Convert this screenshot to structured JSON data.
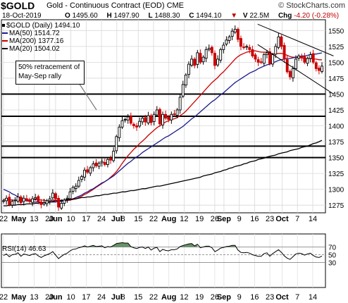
{
  "header": {
    "symbol": "$GOLD",
    "name": "Gold - Continuous Contract (EOD)",
    "exchange": "CME",
    "brand": "© StockCharts.com",
    "date": "18-Oct-2019",
    "open_label": "O",
    "open": "1495.60",
    "high_label": "H",
    "high": "1497.90",
    "low_label": "L",
    "low": "1488.30",
    "close_label": "C",
    "close": "1494.10",
    "volume_label": "V",
    "volume": "22.5M",
    "change_label": "Chg",
    "change": "-4.20 (-0.28%)",
    "change_icon": "down-triangle-icon"
  },
  "legend": {
    "price": "$GOLD (Daily) 1494.10",
    "ma50": "MA(50) 1514.72",
    "ma200": "MA(200) 1377.16",
    "ma20": "MA(20) 1504.02"
  },
  "annotation": {
    "line1": "50% retracement of",
    "line2": "May-Sep rally"
  },
  "rsi": {
    "label": "RSI(14) 46.63",
    "ticks": [
      "70",
      "50",
      "30"
    ],
    "levels": [
      70,
      50,
      30
    ]
  },
  "colors": {
    "up_candle": "#000000",
    "down_candle": "#cc0000",
    "ma50": "#1c1c8c",
    "ma200": "#cc0000",
    "ma20": "#000000",
    "rsi_fill": "#4f7f4f",
    "channel": "#000000"
  },
  "chart_data": {
    "type": "line",
    "title": "$GOLD (Daily) 1494.10",
    "y_ticks": [
      1275,
      1300,
      1325,
      1350,
      1375,
      1400,
      1425,
      1450,
      1475,
      1500,
      1525,
      1550
    ],
    "ylim": [
      1263,
      1567
    ],
    "x_labels": [
      "22",
      "May",
      "13",
      "20",
      "Jun",
      "10",
      "17",
      "24",
      "Jul",
      "8",
      "15",
      "22",
      "Aug",
      "12",
      "19",
      "26",
      "Sep",
      "9",
      "16",
      "23",
      "Oct",
      "7",
      "14"
    ],
    "month_labels": [
      "May",
      "Jun",
      "Jul",
      "Aug",
      "Sep",
      "Oct"
    ],
    "horizontal_levels": [
      1450,
      1415,
      1368,
      1350
    ],
    "series": [
      {
        "name": "$GOLD (Daily) 1494.10",
        "values": [
          1282,
          1286,
          1276,
          1281,
          1283,
          1288,
          1279,
          1286,
          1283,
          1281,
          1285,
          1287,
          1281,
          1276,
          1279,
          1282,
          1285,
          1294,
          1285,
          1272,
          1278,
          1283,
          1286,
          1296,
          1303,
          1305,
          1314,
          1320,
          1330,
          1327,
          1334,
          1340,
          1337,
          1341,
          1344,
          1339,
          1347,
          1346,
          1360,
          1383,
          1398,
          1408,
          1410,
          1414,
          1404,
          1400,
          1398,
          1407,
          1412,
          1406,
          1416,
          1405,
          1418,
          1425,
          1403,
          1418,
          1412,
          1410,
          1418,
          1418,
          1425,
          1445,
          1465,
          1480,
          1497,
          1505,
          1495,
          1515,
          1500,
          1508,
          1520,
          1522,
          1515,
          1495,
          1505,
          1520,
          1527,
          1535,
          1540,
          1549,
          1552,
          1536,
          1525,
          1523,
          1525,
          1520,
          1510,
          1505,
          1500,
          1500,
          1512,
          1515,
          1498,
          1512,
          1525,
          1540,
          1525,
          1505,
          1485,
          1477,
          1490,
          1505,
          1510,
          1508,
          1500,
          1506,
          1512,
          1500,
          1490,
          1487,
          1494
        ]
      },
      {
        "name": "MA(50) 1514.72",
        "values": [
          1300,
          1298,
          1296,
          1293,
          1291,
          1288,
          1286,
          1284,
          1282,
          1281,
          1280,
          1280,
          1280,
          1279,
          1279,
          1279,
          1280,
          1280,
          1280,
          1281,
          1281,
          1282,
          1283,
          1284,
          1285,
          1287,
          1289,
          1291,
          1294,
          1296,
          1299,
          1301,
          1304,
          1307,
          1310,
          1312,
          1315,
          1318,
          1321,
          1325,
          1329,
          1333,
          1337,
          1341,
          1344,
          1348,
          1351,
          1354,
          1358,
          1361,
          1364,
          1367,
          1370,
          1373,
          1376,
          1379,
          1382,
          1384,
          1387,
          1390,
          1393,
          1396,
          1399,
          1403,
          1407,
          1411,
          1414,
          1418,
          1422,
          1426,
          1430,
          1434,
          1438,
          1441,
          1445,
          1449,
          1452,
          1456,
          1460,
          1464,
          1468,
          1471,
          1474,
          1477,
          1480,
          1483,
          1485,
          1487,
          1490,
          1492,
          1494,
          1496,
          1497,
          1499,
          1501,
          1503,
          1504,
          1505,
          1506,
          1506,
          1507,
          1508,
          1509,
          1510,
          1510,
          1511,
          1512,
          1513,
          1513,
          1514,
          1514.72
        ]
      },
      {
        "name": "MA(200) 1377.16",
        "values": [
          1274,
          1274,
          1275,
          1275,
          1275,
          1276,
          1276,
          1276,
          1277,
          1277,
          1277,
          1278,
          1278,
          1279,
          1279,
          1280,
          1280,
          1281,
          1282,
          1282,
          1283,
          1283,
          1284,
          1284,
          1285,
          1285,
          1286,
          1287,
          1287,
          1288,
          1288,
          1289,
          1290,
          1290,
          1291,
          1292,
          1292,
          1293,
          1294,
          1294,
          1295,
          1296,
          1296,
          1297,
          1298,
          1298,
          1299,
          1300,
          1301,
          1301,
          1302,
          1303,
          1304,
          1305,
          1305,
          1306,
          1307,
          1308,
          1309,
          1310,
          1311,
          1312,
          1313,
          1314,
          1315,
          1316,
          1317,
          1318,
          1319,
          1321,
          1322,
          1323,
          1324,
          1326,
          1327,
          1328,
          1330,
          1331,
          1333,
          1334,
          1336,
          1337,
          1338,
          1340,
          1341,
          1343,
          1344,
          1345,
          1347,
          1348,
          1349,
          1351,
          1352,
          1353,
          1354,
          1356,
          1357,
          1358,
          1359,
          1361,
          1362,
          1363,
          1364,
          1366,
          1367,
          1368,
          1370,
          1372,
          1373,
          1375,
          1377.16
        ]
      },
      {
        "name": "MA(20) 1504.02",
        "values": [
          1284,
          1284,
          1284,
          1283,
          1283,
          1283,
          1283,
          1283,
          1283,
          1283,
          1283,
          1284,
          1284,
          1283,
          1283,
          1282,
          1282,
          1283,
          1283,
          1282,
          1282,
          1282,
          1282,
          1283,
          1284,
          1285,
          1287,
          1289,
          1292,
          1294,
          1297,
          1300,
          1303,
          1306,
          1309,
          1312,
          1315,
          1319,
          1323,
          1328,
          1334,
          1341,
          1347,
          1353,
          1358,
          1363,
          1367,
          1372,
          1376,
          1380,
          1385,
          1389,
          1393,
          1397,
          1400,
          1403,
          1406,
          1408,
          1410,
          1411,
          1413,
          1416,
          1419,
          1423,
          1428,
          1433,
          1438,
          1443,
          1448,
          1453,
          1458,
          1463,
          1468,
          1472,
          1476,
          1481,
          1485,
          1490,
          1495,
          1500,
          1505,
          1509,
          1512,
          1514,
          1516,
          1517,
          1518,
          1518,
          1517,
          1516,
          1516,
          1516,
          1514,
          1513,
          1513,
          1514,
          1514,
          1513,
          1511,
          1509,
          1508,
          1508,
          1507,
          1507,
          1506,
          1506,
          1506,
          1505,
          1505,
          1504,
          1504.02
        ]
      }
    ],
    "rsi_values": [
      48,
      52,
      45,
      50,
      51,
      55,
      46,
      52,
      50,
      48,
      51,
      53,
      47,
      43,
      47,
      50,
      53,
      58,
      49,
      40,
      46,
      51,
      54,
      60,
      64,
      65,
      68,
      70,
      73,
      70,
      72,
      74,
      71,
      72,
      73,
      68,
      71,
      70,
      74,
      79,
      80,
      81,
      80,
      80,
      71,
      68,
      66,
      69,
      70,
      66,
      70,
      62,
      67,
      69,
      58,
      64,
      61,
      60,
      63,
      63,
      65,
      71,
      74,
      76,
      78,
      79,
      73,
      77,
      68,
      70,
      72,
      72,
      68,
      58,
      62,
      67,
      69,
      71,
      72,
      74,
      74,
      62,
      56,
      55,
      56,
      54,
      50,
      48,
      46,
      46,
      53,
      55,
      46,
      53,
      58,
      63,
      56,
      47,
      41,
      38,
      45,
      52,
      54,
      53,
      49,
      52,
      54,
      48,
      44,
      43,
      46.63
    ],
    "grid": true,
    "legend_position": "top-left"
  }
}
